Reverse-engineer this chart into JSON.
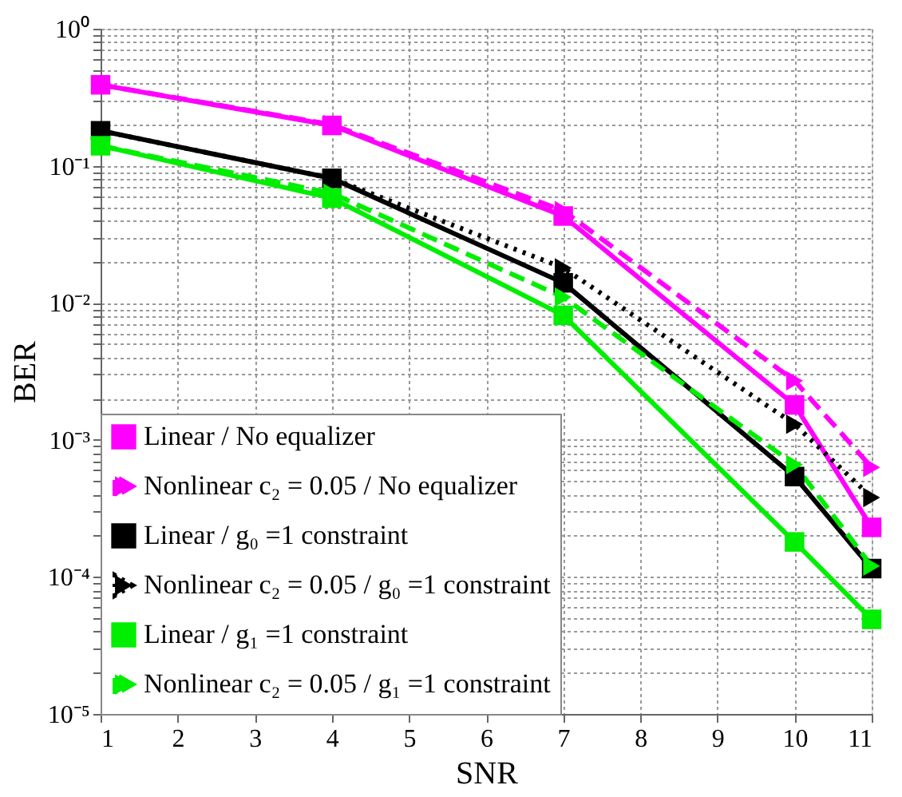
{
  "chart_data": {
    "type": "line",
    "xlabel": "SNR",
    "ylabel": "BER",
    "log": "y",
    "xlim": [
      1,
      11
    ],
    "xticks": [
      1,
      2,
      3,
      4,
      5,
      6,
      7,
      8,
      9,
      10,
      11
    ],
    "ylim": [
      1e-05,
      1
    ],
    "yticks": [
      {
        "value": 1e-05,
        "label": "10⁻⁵"
      },
      {
        "value": 0.0001,
        "label": "10⁻⁴"
      },
      {
        "value": 0.001,
        "label": "10⁻³"
      },
      {
        "value": 0.01,
        "label": "10⁻²"
      },
      {
        "value": 0.1,
        "label": "10⁻¹"
      },
      {
        "value": 1,
        "label": "10⁰"
      },
      {
        "value": 2e-05,
        "label": null
      },
      {
        "value": 3e-05,
        "label": null
      },
      {
        "value": 4e-05,
        "label": null
      },
      {
        "value": 5e-05,
        "label": null
      },
      {
        "value": 6e-05,
        "label": null
      },
      {
        "value": 7e-05,
        "label": null
      },
      {
        "value": 8e-05,
        "label": null
      },
      {
        "value": 9e-05,
        "label": null
      },
      {
        "value": 0.0002,
        "label": null
      },
      {
        "value": 0.0003,
        "label": null
      },
      {
        "value": 0.0004,
        "label": null
      },
      {
        "value": 0.0005,
        "label": null
      },
      {
        "value": 0.0006,
        "label": null
      },
      {
        "value": 0.0007,
        "label": null
      },
      {
        "value": 0.0008,
        "label": null
      },
      {
        "value": 0.0009,
        "label": null
      },
      {
        "value": 0.002,
        "label": null
      },
      {
        "value": 0.003,
        "label": null
      },
      {
        "value": 0.004,
        "label": null
      },
      {
        "value": 0.005,
        "label": null
      },
      {
        "value": 0.006,
        "label": null
      },
      {
        "value": 0.007,
        "label": null
      },
      {
        "value": 0.008,
        "label": null
      },
      {
        "value": 0.009,
        "label": null
      },
      {
        "value": 0.02,
        "label": null
      },
      {
        "value": 0.03,
        "label": null
      },
      {
        "value": 0.04,
        "label": null
      },
      {
        "value": 0.05,
        "label": null
      },
      {
        "value": 0.06,
        "label": null
      },
      {
        "value": 0.07,
        "label": null
      },
      {
        "value": 0.08,
        "label": null
      },
      {
        "value": 0.09,
        "label": null
      },
      {
        "value": 0.2,
        "label": null
      },
      {
        "value": 0.3,
        "label": null
      },
      {
        "value": 0.4,
        "label": null
      },
      {
        "value": 0.5,
        "label": null
      },
      {
        "value": 0.6,
        "label": null
      },
      {
        "value": 0.7,
        "label": null
      },
      {
        "value": 0.8,
        "label": null
      },
      {
        "value": 0.9,
        "label": null
      }
    ],
    "grid": true,
    "legend": "bottom left",
    "x": [
      1,
      4,
      7,
      10,
      11
    ],
    "series": [
      {
        "name": "Linear / No equalizer",
        "color": "#ff00ff",
        "marker": "square",
        "line_style": "solid",
        "values": [
          0.39,
          0.197,
          0.043,
          0.0018,
          0.00023
        ]
      },
      {
        "name": "Nonlinear c₂ = 0.05 / No equalizer",
        "color": "#ff00ff",
        "marker": "triangle",
        "line_style": "dashed",
        "values": [
          0.39,
          0.2,
          0.047,
          0.0027,
          0.00063
        ]
      },
      {
        "name": "Linear / g₀ =1 constraint",
        "color": "#000000",
        "marker": "square",
        "line_style": "solid",
        "values": [
          0.18,
          0.081,
          0.014,
          0.00054,
          0.000115
        ]
      },
      {
        "name": "Nonlinear c₂ = 0.05 / g₀ =1 constraint",
        "color": "#000000",
        "marker": "triangle",
        "line_style": "dotted",
        "values": [
          0.18,
          0.081,
          0.018,
          0.0013,
          0.00038
        ]
      },
      {
        "name": "Linear / g₁ =1 constraint",
        "color": "#00ee00",
        "marker": "square",
        "line_style": "solid",
        "values": [
          0.14,
          0.058,
          0.0081,
          0.00018,
          4.9e-05
        ]
      },
      {
        "name": "Nonlinear c₂ = 0.05 / g₁ =1 constraint",
        "color": "#00ee00",
        "marker": "triangle",
        "line_style": "dashed",
        "values": [
          0.14,
          0.063,
          0.011,
          0.00066,
          0.00012
        ]
      }
    ]
  }
}
